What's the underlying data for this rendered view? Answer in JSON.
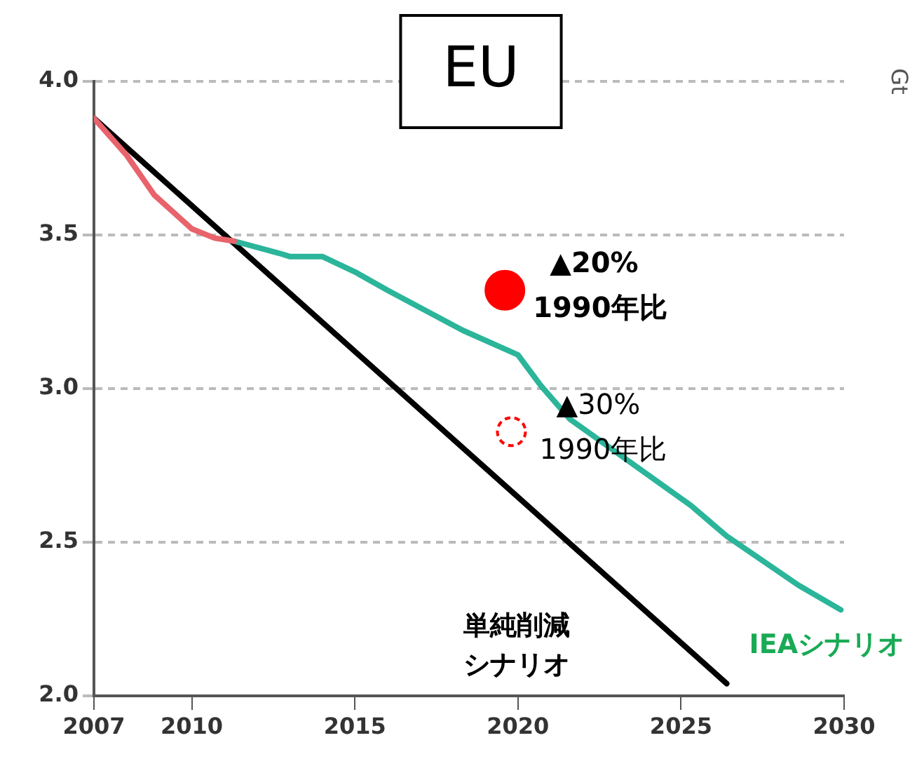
{
  "chart_data": {
    "type": "line",
    "title": "EU",
    "ylabel": "Gt",
    "xlim": [
      2007,
      2030
    ],
    "xticks": [
      2007,
      2010,
      2015,
      2020,
      2025,
      2030
    ],
    "ylim": [
      2.0,
      4.0
    ],
    "yticks": [
      {
        "value": 2,
        "label": "2.0"
      },
      2.5,
      {
        "value": 3,
        "label": "3.0"
      },
      3.5,
      {
        "value": 4,
        "label": "4.0"
      }
    ],
    "grid": "y",
    "marker": "none",
    "series": [
      {
        "color": "#e8636b",
        "x": [
          2007,
          2008,
          2008.85,
          2010,
          2010.7,
          2011.3
        ],
        "values": [
          3.88,
          3.76,
          3.63,
          3.52,
          3.49,
          3.48
        ]
      },
      {
        "name": "IEAシナリオ",
        "color": "#2bb59a",
        "x": [
          2011.3,
          2012.7,
          2013,
          2014,
          2015,
          2016,
          2018.3,
          2020,
          2020.7,
          2021.6,
          2025.3,
          2026.4,
          2028.6,
          2029.9
        ],
        "values": [
          3.48,
          3.44,
          3.43,
          3.43,
          3.38,
          3.32,
          3.19,
          3.11,
          3.01,
          2.9,
          2.62,
          2.52,
          2.36,
          2.28
        ]
      },
      {
        "name": "単純削減シナリオ",
        "color": "#000000",
        "x": [
          2007,
          2026.4
        ],
        "values": [
          3.88,
          2.04
        ]
      },
      {
        "type": "scatter",
        "color": "#ff0000",
        "marker": "circle",
        "line_style": "solid",
        "x": [
          2019.6
        ],
        "values": [
          3.32
        ]
      },
      {
        "type": "scatter",
        "color": "#ff0000",
        "marker": "circle",
        "line_style": "dashed",
        "x": [
          2019.8
        ],
        "values": [
          2.86
        ]
      }
    ],
    "annotations": [
      {
        "text": "▲20%\n1990年比",
        "x": 2019.6,
        "y": 3.32
      },
      {
        "text": "▲30%\n1990年比",
        "x": 2019.8,
        "y": 2.86
      }
    ]
  }
}
